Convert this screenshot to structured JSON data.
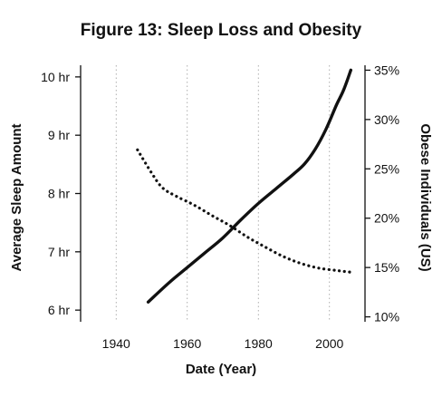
{
  "chart_data": {
    "type": "line",
    "title": "Figure 13: Sleep Loss and Obesity",
    "xlabel": "Date (Year)",
    "ylabel": "Average Sleep Amount",
    "y2label": "Obese Individuals (US)",
    "xlim": [
      1930,
      2010
    ],
    "ylim": [
      5.8,
      10.2
    ],
    "y2lim": [
      9.5,
      35.5
    ],
    "x_ticks": [
      1940,
      1960,
      1980,
      2000
    ],
    "x_tick_labels": [
      "1940",
      "1960",
      "1980",
      "2000"
    ],
    "y_ticks": [
      6,
      7,
      8,
      9,
      10
    ],
    "y_tick_labels": [
      "6 hr",
      "7 hr",
      "8 hr",
      "9 hr",
      "10 hr"
    ],
    "y2_ticks": [
      10,
      15,
      20,
      25,
      30,
      35
    ],
    "y2_tick_labels": [
      "10%",
      "15%",
      "20%",
      "25%",
      "30%",
      "35%"
    ],
    "grid": "vertical-dotted",
    "series": [
      {
        "style": "dotted",
        "axis": "left",
        "x": [
          1946,
          1950,
          1953,
          1957,
          1962,
          1967,
          1972,
          1977,
          1982,
          1987,
          1992,
          1997,
          2002,
          2006
        ],
        "values": [
          8.75,
          8.35,
          8.1,
          7.95,
          7.8,
          7.62,
          7.45,
          7.25,
          7.08,
          6.92,
          6.8,
          6.72,
          6.68,
          6.65
        ]
      },
      {
        "style": "solid",
        "axis": "right",
        "x": [
          1949,
          1955,
          1960,
          1965,
          1970,
          1975,
          1980,
          1985,
          1990,
          1993,
          1996,
          1999,
          2002,
          2004,
          2006
        ],
        "values": [
          11.5,
          13.5,
          15.0,
          16.5,
          18.0,
          19.8,
          21.5,
          23.0,
          24.5,
          25.5,
          27.0,
          29.0,
          31.5,
          33.0,
          35.0
        ]
      }
    ]
  }
}
